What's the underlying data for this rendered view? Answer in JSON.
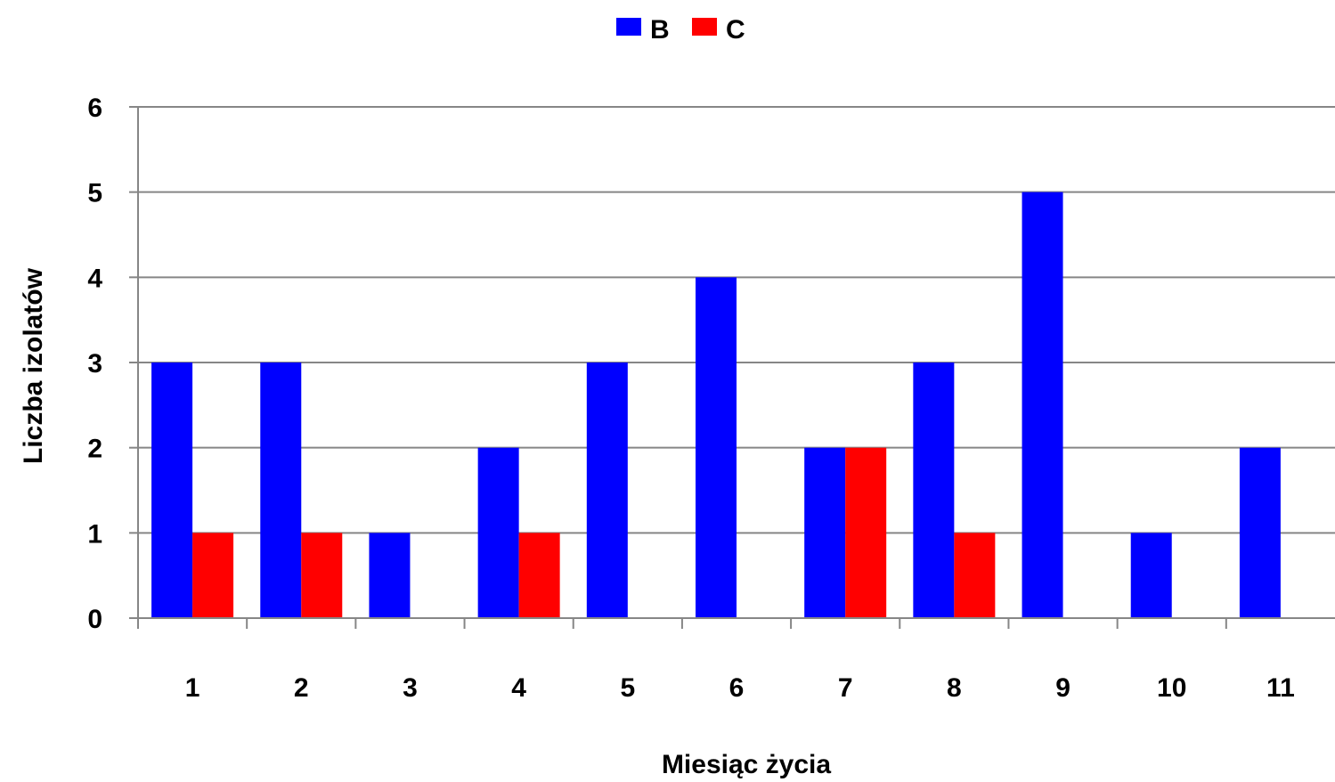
{
  "chart_data": {
    "type": "bar",
    "title": "",
    "xlabel": "Miesiąc życia",
    "ylabel": "Liczba izolatów",
    "categories": [
      "1",
      "2",
      "3",
      "4",
      "5",
      "6",
      "7",
      "8",
      "9",
      "10",
      "11"
    ],
    "series": [
      {
        "name": "B",
        "color": "#0000ff",
        "values": [
          3,
          3,
          1,
          2,
          3,
          4,
          2,
          3,
          5,
          1,
          2
        ]
      },
      {
        "name": "C",
        "color": "#ff0000",
        "values": [
          1,
          1,
          0,
          1,
          0,
          0,
          2,
          1,
          0,
          0,
          0
        ]
      }
    ],
    "ylim": [
      0,
      6
    ],
    "yticks": [
      "0",
      "1",
      "2",
      "3",
      "4",
      "5",
      "6"
    ],
    "grid": true,
    "legend_position": "top-center"
  }
}
